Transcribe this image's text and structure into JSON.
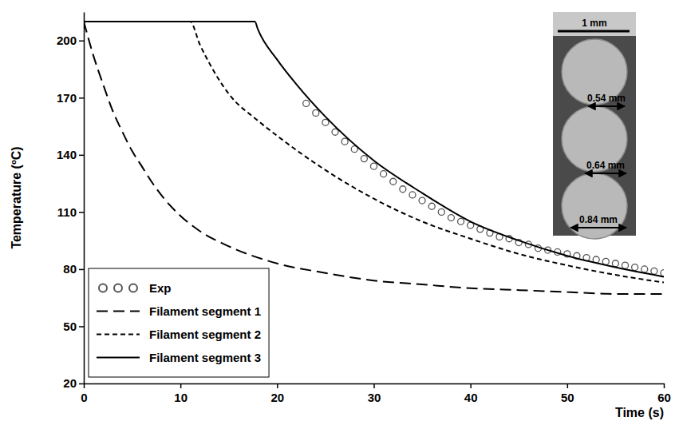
{
  "chart_data": {
    "type": "line",
    "x_label": "Time (s)",
    "y_label": "Temperature (ºC)",
    "xlim": [
      0,
      60
    ],
    "xticks": [
      0,
      10,
      20,
      30,
      40,
      50,
      60
    ],
    "ylim": [
      20,
      215
    ],
    "yticks": [
      20,
      50,
      80,
      110,
      140,
      170,
      200
    ],
    "legend": "lower left",
    "annotations": [
      "1 mm",
      "0.54 mm",
      "0.64 mm",
      "0.84 mm"
    ],
    "series": [
      {
        "name": "Exp",
        "type": "scatter",
        "color": "#555555",
        "marker": "circle",
        "line_style": "none",
        "x": [
          23,
          24,
          25,
          26,
          27,
          28,
          29,
          30,
          31,
          32,
          33,
          34,
          35,
          36,
          37,
          38,
          39,
          40,
          41,
          42,
          43,
          44,
          45,
          46,
          47,
          48,
          49,
          50,
          51,
          52,
          53,
          54,
          55,
          56,
          57,
          58,
          59,
          60
        ],
        "values": [
          167,
          162,
          157,
          152,
          147,
          143,
          138,
          134,
          130,
          126,
          122,
          119,
          116,
          113,
          110,
          107,
          105,
          103,
          101,
          99,
          97,
          96,
          94,
          93,
          91,
          90,
          89,
          88,
          87,
          86,
          85,
          84,
          83,
          82,
          81,
          80,
          79,
          78
        ]
      },
      {
        "name": "Filament segment 1",
        "type": "line",
        "color": "#000000",
        "line_style": "long_dash",
        "x": [
          0,
          1,
          2,
          3,
          4,
          5,
          6,
          7,
          8,
          10,
          12,
          15,
          20,
          25,
          30,
          35,
          40,
          45,
          50,
          55,
          60
        ],
        "values": [
          210,
          192,
          177,
          163,
          152,
          142,
          134,
          126,
          119,
          108,
          100,
          92,
          83,
          78,
          74,
          72,
          70,
          69,
          68,
          67,
          67
        ]
      },
      {
        "name": "Filament segment 2",
        "type": "line",
        "color": "#000000",
        "line_style": "dash",
        "x": [
          0,
          11,
          12,
          13,
          15,
          18,
          20,
          25,
          30,
          35,
          40,
          45,
          50,
          55,
          60
        ],
        "values": [
          210,
          210,
          198,
          188,
          172,
          158,
          150,
          132,
          117,
          105,
          96,
          88,
          82,
          77,
          73
        ]
      },
      {
        "name": "Filament segment 3",
        "type": "line",
        "color": "#000000",
        "line_style": "solid",
        "x": [
          0,
          17.7,
          18,
          20,
          22,
          25,
          30,
          35,
          40,
          45,
          50,
          55,
          60
        ],
        "values": [
          210,
          210,
          206,
          190,
          177,
          160,
          137,
          120,
          105,
          95,
          87,
          81,
          76
        ]
      }
    ]
  }
}
